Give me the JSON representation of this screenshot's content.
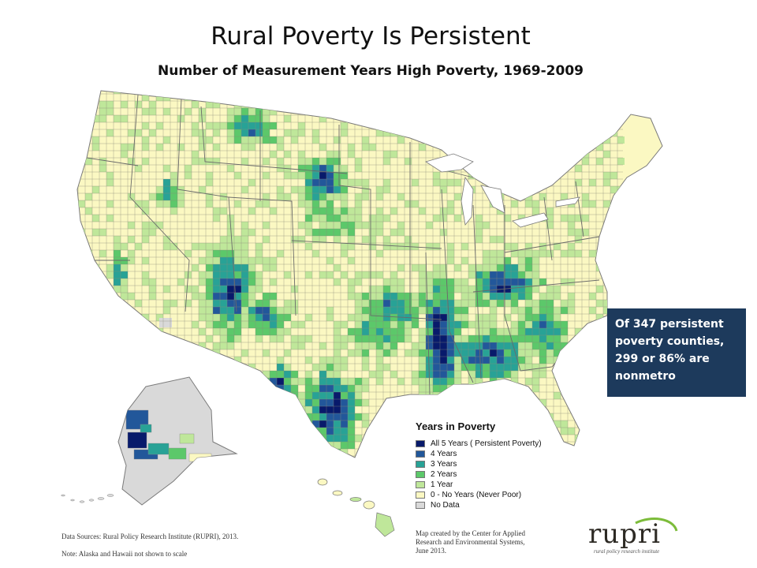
{
  "title": "Rural Poverty Is Persistent",
  "subtitle": "Number of Measurement Years High Poverty, 1969-2009",
  "callout": {
    "lines": [
      "Of 347 persistent",
      "poverty counties,",
      "299 or 86% are",
      "nonmetro"
    ]
  },
  "legend": {
    "title": "Years in Poverty",
    "items": [
      {
        "label": "All 5 Years ( Persistent Poverty)",
        "color": "#081a6b"
      },
      {
        "label": "4 Years",
        "color": "#22579a"
      },
      {
        "label": "3 Years",
        "color": "#28a296"
      },
      {
        "label": "2 Years",
        "color": "#5cc86a"
      },
      {
        "label": "1 Year",
        "color": "#bfe79a"
      },
      {
        "label": "0 - No Years (Never Poor)",
        "color": "#fbf8c2"
      },
      {
        "label": "No Data",
        "color": "#d9d9d9"
      }
    ]
  },
  "footer": {
    "sources": "Data Sources: Rural Policy Research Institute (RUPRI), 2013.",
    "note": "Note: Alaska and Hawaii not shown to scale",
    "credit_lines": [
      "Map created by the Center for Applied",
      "Research and Environmental Systems,",
      "June 2013."
    ]
  },
  "logo": {
    "word": "rupri",
    "tagline": "rural policy research institute",
    "accent_color": "#7cbc3a"
  },
  "colors": {
    "never": "#fbf8c2",
    "one": "#bfe79a",
    "two": "#5cc86a",
    "three": "#28a296",
    "four": "#22579a",
    "five": "#081a6b",
    "nodata": "#d9d9d9",
    "callout_bg": "#1d3a5c"
  }
}
